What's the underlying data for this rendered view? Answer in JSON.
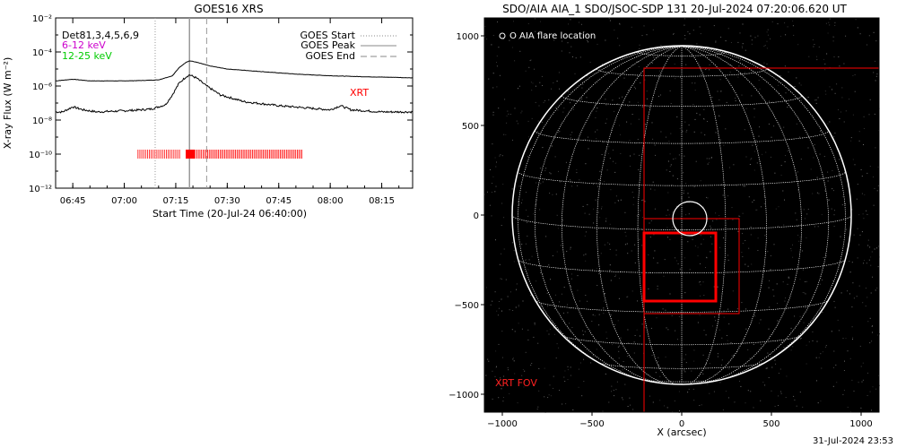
{
  "chart_data": [
    {
      "type": "line",
      "title": "GOES16 XRS",
      "xlabel": "Start Time (20-Jul-24 06:40:00)",
      "ylabel": "X-ray Flux (W m⁻²)",
      "y_scale": "log",
      "ylim": [
        1e-12,
        0.01
      ],
      "xlim_minutes_after_start": [
        0,
        104
      ],
      "x_ticks": [
        "06:45",
        "07:00",
        "07:15",
        "07:30",
        "07:45",
        "08:00",
        "08:15"
      ],
      "y_ticks": [
        "10⁻²",
        "10⁻⁴",
        "10⁻⁶",
        "10⁻⁸",
        "10⁻¹⁰",
        "10⁻¹²"
      ],
      "legend_left": [
        {
          "label": "Det81,3,4,5,6,9",
          "color": "#000000"
        },
        {
          "label": "6-12 keV",
          "color": "#cc00cc"
        },
        {
          "label": "12-25 keV",
          "color": "#00cc00"
        }
      ],
      "legend_right": [
        {
          "label": "GOES Start",
          "style": "dotted"
        },
        {
          "label": "GOES Peak",
          "style": "solid"
        },
        {
          "label": "GOES End",
          "style": "dashed"
        }
      ],
      "xrt_label": "XRT",
      "goes_start": "07:09",
      "goes_peak": "07:19",
      "goes_end": "07:24",
      "series": [
        {
          "band": "long",
          "x": [
            "06:40",
            "06:45",
            "06:50",
            "06:55",
            "07:00",
            "07:05",
            "07:10",
            "07:14",
            "07:16",
            "07:18",
            "07:19",
            "07:20",
            "07:22",
            "07:25",
            "07:30",
            "07:40",
            "07:50",
            "08:00",
            "08:10",
            "08:20",
            "08:24"
          ],
          "y": [
            2e-06,
            2.5e-06,
            2e-06,
            2e-06,
            2e-06,
            2.1e-06,
            2.3e-06,
            4e-06,
            1.2e-05,
            2.5e-05,
            3e-05,
            2.8e-05,
            2.2e-05,
            1.5e-05,
            1e-05,
            7e-06,
            5e-06,
            4e-06,
            3.5e-06,
            3.2e-06,
            3e-06
          ]
        },
        {
          "band": "short",
          "x": [
            "06:40",
            "06:42",
            "06:45",
            "06:48",
            "06:52",
            "07:00",
            "07:05",
            "07:08",
            "07:12",
            "07:14",
            "07:16",
            "07:18",
            "07:19",
            "07:21",
            "07:24",
            "07:28",
            "07:35",
            "07:45",
            "08:00",
            "08:03",
            "08:06",
            "08:15",
            "08:24"
          ],
          "y": [
            3e-08,
            3e-08,
            6e-08,
            4e-08,
            3e-08,
            3.5e-08,
            4e-08,
            4.5e-08,
            8e-08,
            3e-07,
            1.5e-06,
            3.5e-06,
            4.5e-06,
            3e-06,
            1e-06,
            3e-07,
            1.2e-07,
            7e-08,
            4e-08,
            7e-08,
            4e-08,
            3e-08,
            3e-08
          ]
        }
      ],
      "xrt_obs_minutes": [
        [
          24,
          36.5
        ],
        [
          38,
          72
        ]
      ]
    },
    {
      "type": "scatter",
      "title": "SDO/AIA AIA_1 SDO/JSOC-SDP 131 20-Jul-2024 07:20:06.620 UT",
      "xlabel": "X (arcsec)",
      "ylabel": "",
      "xlim": [
        -1100,
        1100
      ],
      "ylim": [
        -1100,
        1100
      ],
      "x_ticks": [
        "−1000",
        "−500",
        "0",
        "500",
        "1000"
      ],
      "y_ticks": [
        "1000",
        "500",
        "0",
        "−500",
        "−1000"
      ],
      "legend": "O AIA flare location",
      "xrt_fov_label": "XRT FOV",
      "solar_radius_arcsec": 945,
      "flare_location": [
        45,
        -20
      ],
      "flare_circle_radius": 95,
      "xrt_fov": [
        -210,
        -1100,
        1100,
        820
      ],
      "box_medium": [
        -210,
        -550,
        320,
        -20
      ],
      "box_small": [
        -210,
        -480,
        190,
        -100
      ]
    }
  ],
  "footer": {
    "timestamp": "31-Jul-2024 23:53"
  }
}
